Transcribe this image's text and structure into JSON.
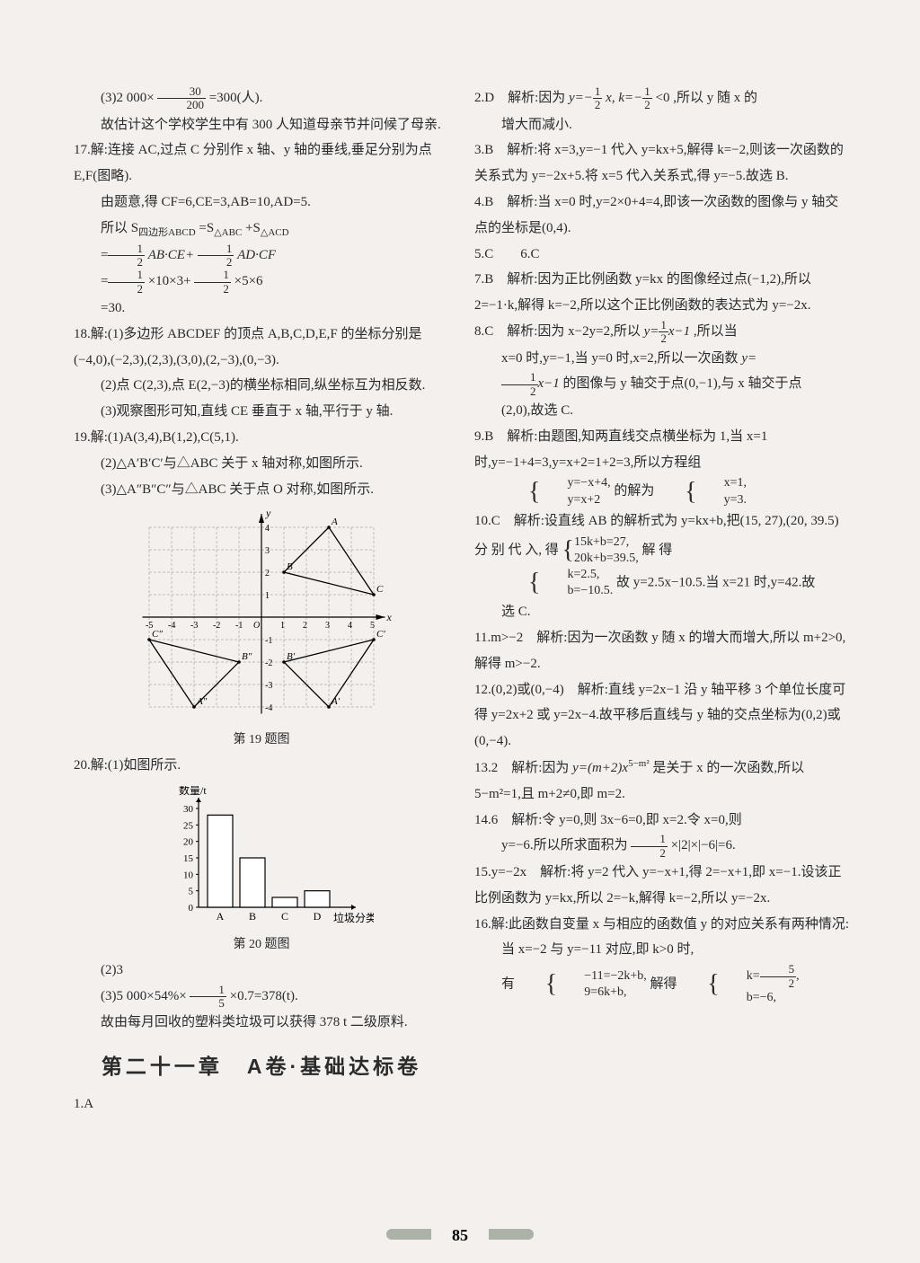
{
  "page_number": "85",
  "left": {
    "p16_3a": "(3)2 000×",
    "p16_3b": "=300(人).",
    "p16_3c": "故估计这个学校学生中有 300 人知道母亲节并问候了母亲.",
    "p17a": "17.解:连接 AC,过点 C 分别作 x 轴、y 轴的垂线,垂足分别为点 E,F(图略).",
    "p17b": "由题意,得 CF=6,CE=3,AB=10,AD=5.",
    "p17c": "所以 S",
    "p17c2": "=S",
    "p17c3": "+S",
    "p17d1": "AB·CE+",
    "p17d2": "AD·CF",
    "p17e1": "×10×3+",
    "p17e2": "×5×6",
    "p17f": "=30.",
    "p18a": "18.解:(1)多边形 ABCDEF 的顶点 A,B,C,D,E,F 的坐标分别是(−4,0),(−2,3),(2,3),(3,0),(2,−3),(0,−3).",
    "p18b": "(2)点 C(2,3),点 E(2,−3)的横坐标相同,纵坐标互为相反数.",
    "p18c": "(3)观察图形可知,直线 CE 垂直于 x 轴,平行于 y 轴.",
    "p19a": "19.解:(1)A(3,4),B(1,2),C(5,1).",
    "p19b": "(2)△A′B′C′与△ABC 关于 x 轴对称,如图所示.",
    "p19c": "(3)△A″B″C″与△ABC 关于点 O 对称,如图所示.",
    "fig19_caption": "第 19 题图",
    "p20a": "20.解:(1)如图所示.",
    "fig20_caption": "第 20 题图",
    "p20b": "(2)3",
    "p20c1": "(3)5 000×54%×",
    "p20c2": "×0.7=378(t).",
    "p20d": "故由每月回收的塑料类垃圾可以获得 378 t 二级原料.",
    "chapter": "第二十一章　A卷·基础达标卷",
    "p1": "1.A",
    "chart19": {
      "type": "coordinate-grid",
      "x_range": [
        -5,
        5
      ],
      "y_range": [
        -4,
        4
      ],
      "x_ticks": [
        "-5",
        "-4",
        "-3",
        "-2",
        "-1",
        "O",
        "1",
        "2",
        "3",
        "4",
        "5"
      ],
      "y_ticks_pos": [
        "4",
        "3",
        "2",
        "1"
      ],
      "y_ticks_neg": [
        "-1",
        "-2",
        "-3",
        "-4"
      ],
      "labels": [
        "A",
        "B",
        "C",
        "A′",
        "B′",
        "C′",
        "A″",
        "B″",
        "C″"
      ],
      "points": {
        "A": [
          3,
          4
        ],
        "B": [
          1,
          2
        ],
        "C": [
          5,
          1
        ],
        "Ap": [
          3,
          -4
        ],
        "Bp": [
          1,
          -2
        ],
        "Cp": [
          5,
          -1
        ],
        "App": [
          -3,
          -4
        ],
        "Bpp": [
          -1,
          -2
        ],
        "Cpp": [
          -5,
          -1
        ]
      },
      "grid_color": "#888888",
      "line_color": "#000000",
      "background": "#f4f0ed",
      "axis_label_x": "x",
      "axis_label_y": "y"
    },
    "chart20": {
      "type": "bar",
      "categories": [
        "A",
        "B",
        "C",
        "D"
      ],
      "values": [
        28,
        15,
        3,
        5
      ],
      "y_ticks": [
        "0",
        "5",
        "10",
        "15",
        "20",
        "25",
        "30"
      ],
      "y_label": "数量/t",
      "x_label": "垃圾分类",
      "bar_fill": "#ffffff",
      "bar_stroke": "#000000",
      "axis_color": "#000000",
      "background": "#f4f0ed"
    }
  },
  "right": {
    "p2a": "2.D　解析:因为 ",
    "p2a2": ",所以 y 随 x 的",
    "p2b": "增大而减小.",
    "p3a": "3.B　解析:将 x=3,y=−1 代入 y=kx+5,解得 k=−2,则该一次函数的关系式为 y=−2x+5.将 x=5 代入关系式,得 y=−5.故选 B.",
    "p4a": "4.B　解析:当 x=0 时,y=2×0+4=4,即该一次函数的图像与 y 轴交点的坐标是(0,4).",
    "p5": "5.C　　6.C",
    "p7a": "7.B　解析:因为正比例函数 y=kx 的图像经过点(−1,2),所以 2=−1·k,解得 k=−2,所以这个正比例函数的表达式为 y=−2x.",
    "p8a": "8.C　解析:因为 x−2y=2,所以 ",
    "p8a2": ",所以当",
    "p8b": "x=0 时,y=−1,当 y=0 时,x=2,所以一次函数 ",
    "p8c1": " 的图像与 y 轴交于点(0,−1),与 x 轴交于点",
    "p8d": "(2,0),故选 C.",
    "p9a": "9.B　解析:由题图,知两直线交点横坐标为 1,当 x=1 时,y=−1+4=3,y=x+2=1+2=3,所以方程组",
    "p9b": "的解为",
    "p9s1a": "y=−x+4,",
    "p9s1b": "y=x+2",
    "p9s2a": "x=1,",
    "p9s2b": "y=3.",
    "p10a": "10.C　解析:设直线 AB 的解析式为 y=kx+b,把(15, 27),(20, 39.5) 分 别 代 入, 得 ",
    "p10a2": " 解 得",
    "p10s1a": "15k+b=27,",
    "p10s1b": "20k+b=39.5,",
    "p10s2a": "k=2.5,",
    "p10s2b": "b=−10.5.",
    "p10b": "故 y=2.5x−10.5.当 x=21 时,y=42.故",
    "p10c": "选 C.",
    "p11a": "11.m>−2　解析:因为一次函数 y 随 x 的增大而增大,所以 m+2>0,解得 m>−2.",
    "p12a": "12.(0,2)或(0,−4)　解析:直线 y=2x−1 沿 y 轴平移 3 个单位长度可得 y=2x+2 或 y=2x−4.故平移后直线与 y 轴的交点坐标为(0,2)或(0,−4).",
    "p13a": "13.2　解析:因为 ",
    "p13a2": " 是关于 x 的一次函数,所以 5−m²=1,且 m+2≠0,即 m=2.",
    "p13expr": "y=(m+2)x",
    "p13sup": "5−m²",
    "p14a": "14.6　解析:令 y=0,则 3x−6=0,即 x=2.令 x=0,则",
    "p14b1": "y=−6.所以所求面积为 ",
    "p14b2": "×|2|×|−6|=6.",
    "p15a": "15.y=−2x　解析:将 y=2 代入 y=−x+1,得 2=−x+1,即 x=−1.设该正比例函数为 y=kx,所以 2=−k,解得 k=−2,所以 y=−2x.",
    "p16a": "16.解:此函数自变量 x 与相应的函数值 y 的对应关系有两种情况:",
    "p16b": "当 x=−2 与 y=−11 对应,即 k>0 时,",
    "p16c": "有",
    "p16c2": "解得",
    "p16s1a": "−11=−2k+b,",
    "p16s1b": "9=6k+b,",
    "p16s2b": "b=−6,",
    "p16s2a_pre": "k=",
    "p16s2a_post": ","
  },
  "fractions": {
    "f30_200": {
      "n": "30",
      "d": "200"
    },
    "half": {
      "n": "1",
      "d": "2"
    },
    "fifth": {
      "n": "1",
      "d": "5"
    },
    "f5_2": {
      "n": "5",
      "d": "2"
    }
  },
  "subscripts": {
    "quad": "四边形ABCD",
    "tABC": "△ABC",
    "tACD": "△ACD"
  },
  "exprs": {
    "r2_y": "y=−",
    "r2_x": "x, k=−",
    "r2_lt": "<0",
    "r8_y": "y=",
    "r8_x": "x−1",
    "r8c_y": "y=",
    "r8c_x": "x−1"
  }
}
